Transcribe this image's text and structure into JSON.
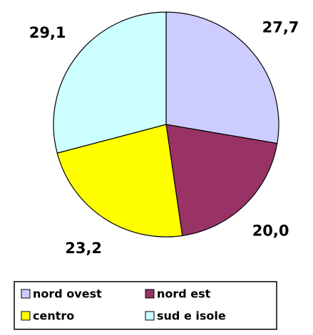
{
  "chart_data": {
    "type": "pie",
    "categories": [
      "nord ovest",
      "nord est",
      "centro",
      "sud e isole"
    ],
    "values": [
      27.7,
      20.0,
      23.2,
      29.1
    ],
    "value_labels": [
      "27,7",
      "20,0",
      "23,2",
      "29,1"
    ],
    "colors": [
      "#ccccff",
      "#993366",
      "#ffff00",
      "#ccffff"
    ],
    "legend": "bottom"
  }
}
